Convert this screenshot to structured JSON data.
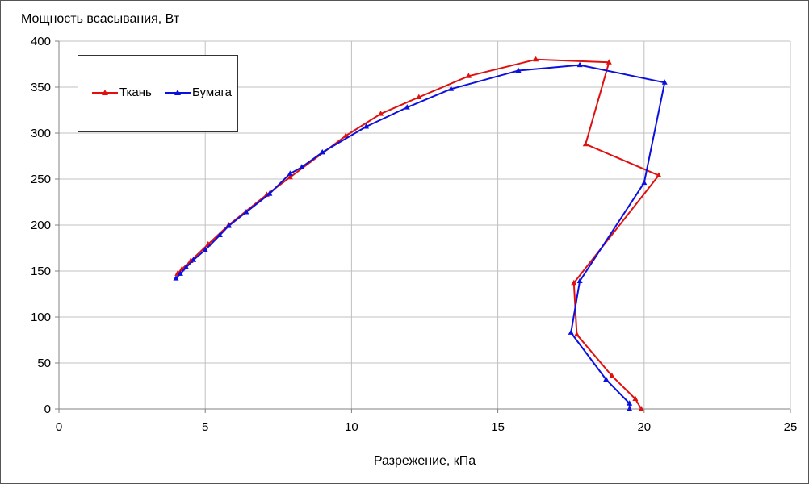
{
  "chart_data": {
    "type": "line",
    "title": "",
    "xlabel": "Разрежение, кПа",
    "ylabel": "Мощность всасывания, Вт",
    "xlim": [
      0,
      25
    ],
    "ylim": [
      0,
      400
    ],
    "xticks": [
      "0",
      "5",
      "10",
      "15",
      "20",
      "25"
    ],
    "yticks": [
      "0",
      "50",
      "100",
      "150",
      "200",
      "250",
      "300",
      "350",
      "400"
    ],
    "grid": true,
    "legend_position": "top-left",
    "series": [
      {
        "name": "Ткань",
        "color": "#e01010",
        "marker": "triangle",
        "points": [
          [
            19.9,
            0
          ],
          [
            19.7,
            11
          ],
          [
            18.9,
            36
          ],
          [
            17.7,
            81
          ],
          [
            17.6,
            137
          ],
          [
            20.5,
            254
          ],
          [
            18.0,
            288
          ],
          [
            18.8,
            377
          ],
          [
            16.3,
            380
          ],
          [
            14.0,
            362
          ],
          [
            12.3,
            339
          ],
          [
            11.0,
            321
          ],
          [
            9.8,
            297
          ],
          [
            7.9,
            252
          ],
          [
            7.1,
            233
          ],
          [
            5.8,
            200
          ],
          [
            5.1,
            179
          ],
          [
            4.5,
            161
          ],
          [
            4.2,
            152
          ],
          [
            4.05,
            147
          ]
        ]
      },
      {
        "name": "Бумага",
        "color": "#0b10e0",
        "marker": "triangle",
        "points": [
          [
            19.5,
            0
          ],
          [
            19.5,
            6
          ],
          [
            18.7,
            32
          ],
          [
            17.5,
            83
          ],
          [
            17.8,
            139
          ],
          [
            20.0,
            246
          ],
          [
            20.7,
            355
          ],
          [
            17.8,
            374
          ],
          [
            15.7,
            368
          ],
          [
            13.4,
            348
          ],
          [
            11.9,
            328
          ],
          [
            10.5,
            307
          ],
          [
            9.0,
            279
          ],
          [
            8.3,
            263
          ],
          [
            7.9,
            256
          ],
          [
            7.2,
            234
          ],
          [
            6.4,
            214
          ],
          [
            5.8,
            199
          ],
          [
            5.5,
            189
          ],
          [
            5.0,
            173
          ],
          [
            4.6,
            162
          ],
          [
            4.35,
            154
          ],
          [
            4.15,
            147
          ],
          [
            4.0,
            142
          ]
        ]
      }
    ]
  },
  "legend": {
    "items": [
      "Ткань",
      "Бумага"
    ]
  }
}
